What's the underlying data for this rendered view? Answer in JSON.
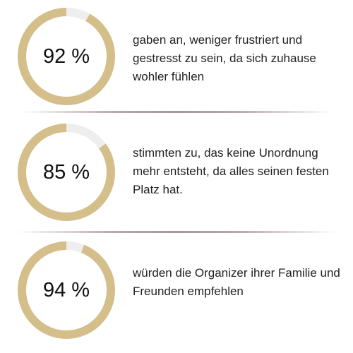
{
  "chart_data": {
    "type": "donut",
    "items": [
      {
        "value": 92,
        "label": "92 %",
        "text": "gaben an, weniger frustriert und gestresst zu sein, da sich zuhause wohler fühlen"
      },
      {
        "value": 85,
        "label": "85 %",
        "text": "stimmten zu, das keine Unordnung mehr entsteht, da alles seinen festen Platz hat."
      },
      {
        "value": 94,
        "label": "94 %",
        "text": "würden die Organizer ihrer Familie und Freunden empfehlen"
      }
    ]
  },
  "colors": {
    "fill": "#d4bf8a",
    "track": "#eeeeee",
    "divider": "#ad9a9a"
  }
}
